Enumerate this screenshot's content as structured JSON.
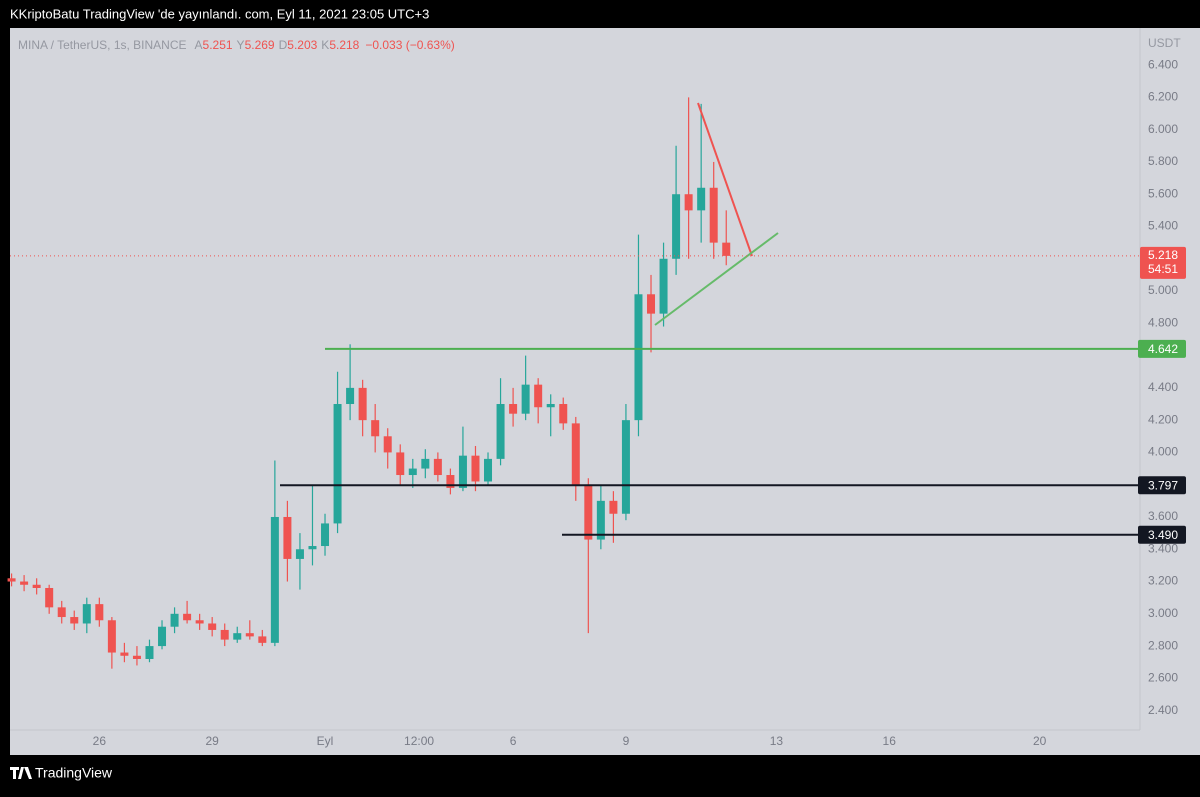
{
  "header": {
    "title": "KKriptoBatu TradingView 'de yayınlandı. com, Eyl 11, 2021 23:05 UTC+3"
  },
  "footer": {
    "brand": "TradingView"
  },
  "chart_data": {
    "type": "candlestick",
    "legend": {
      "symbol": "MINA / TetherUS, 1s, BINANCE",
      "ohlc": [
        {
          "label": "A",
          "value": 5.251
        },
        {
          "label": "Y",
          "value": 5.269
        },
        {
          "label": "D",
          "value": 5.203
        },
        {
          "label": "K",
          "value": 5.218
        }
      ],
      "change": "−0.033 (−0.63%)"
    },
    "currency": "USDT",
    "up_color": "#26a69a",
    "down_color": "#ef5350",
    "x": [
      "2021-08-23T16:00",
      "2021-08-24T00:00",
      "2021-08-24T08:00",
      "2021-08-24T16:00",
      "2021-08-25T00:00",
      "2021-08-25T08:00",
      "2021-08-25T16:00",
      "2021-08-26T00:00",
      "2021-08-26T08:00",
      "2021-08-26T16:00",
      "2021-08-27T00:00",
      "2021-08-27T08:00",
      "2021-08-27T16:00",
      "2021-08-28T00:00",
      "2021-08-28T08:00",
      "2021-08-28T16:00",
      "2021-08-29T00:00",
      "2021-08-29T08:00",
      "2021-08-29T16:00",
      "2021-08-30T00:00",
      "2021-08-30T08:00",
      "2021-08-30T16:00",
      "2021-08-31T00:00",
      "2021-08-31T08:00",
      "2021-08-31T16:00",
      "2021-09-01T00:00",
      "2021-09-01T08:00",
      "2021-09-01T16:00",
      "2021-09-02T00:00",
      "2021-09-02T08:00",
      "2021-09-02T16:00",
      "2021-09-03T00:00",
      "2021-09-03T08:00",
      "2021-09-03T16:00",
      "2021-09-04T00:00",
      "2021-09-04T08:00",
      "2021-09-04T16:00",
      "2021-09-05T00:00",
      "2021-09-05T08:00",
      "2021-09-05T16:00",
      "2021-09-06T00:00",
      "2021-09-06T08:00",
      "2021-09-06T16:00",
      "2021-09-07T00:00",
      "2021-09-07T08:00",
      "2021-09-07T16:00",
      "2021-09-08T00:00",
      "2021-09-08T08:00",
      "2021-09-08T16:00",
      "2021-09-09T00:00",
      "2021-09-09T08:00",
      "2021-09-09T16:00",
      "2021-09-10T00:00",
      "2021-09-10T08:00",
      "2021-09-10T16:00",
      "2021-09-11T00:00",
      "2021-09-11T08:00",
      "2021-09-11T16:00"
    ],
    "open": [
      3.22,
      3.2,
      3.18,
      3.16,
      3.04,
      2.98,
      2.94,
      3.06,
      2.96,
      2.76,
      2.74,
      2.72,
      2.8,
      2.92,
      3.0,
      2.96,
      2.94,
      2.9,
      2.84,
      2.88,
      2.86,
      2.82,
      3.6,
      3.34,
      3.4,
      3.42,
      3.56,
      4.3,
      4.4,
      4.2,
      4.1,
      4.0,
      3.86,
      3.9,
      3.96,
      3.86,
      3.78,
      3.98,
      3.82,
      3.96,
      4.3,
      4.24,
      4.42,
      4.28,
      4.3,
      4.18,
      3.8,
      3.46,
      3.7,
      3.62,
      4.2,
      4.98,
      4.86,
      5.2,
      5.6,
      5.5,
      5.64,
      5.3
    ],
    "high": [
      3.25,
      3.24,
      3.22,
      3.18,
      3.08,
      3.02,
      3.1,
      3.1,
      2.98,
      2.82,
      2.8,
      2.84,
      2.96,
      3.04,
      3.08,
      3.0,
      2.98,
      2.94,
      2.92,
      2.96,
      2.9,
      3.95,
      3.7,
      3.5,
      3.8,
      3.62,
      4.5,
      4.67,
      4.45,
      4.3,
      4.15,
      4.05,
      3.96,
      4.02,
      4.0,
      3.9,
      4.16,
      4.04,
      4.0,
      4.46,
      4.4,
      4.6,
      4.46,
      4.36,
      4.34,
      4.22,
      3.84,
      3.8,
      3.76,
      4.3,
      5.35,
      5.1,
      5.3,
      5.9,
      6.2,
      6.16,
      5.8,
      5.5
    ],
    "low": [
      3.17,
      3.14,
      3.12,
      3.0,
      2.94,
      2.9,
      2.88,
      2.92,
      2.66,
      2.7,
      2.68,
      2.7,
      2.78,
      2.88,
      2.94,
      2.9,
      2.86,
      2.8,
      2.82,
      2.84,
      2.8,
      2.8,
      3.2,
      3.15,
      3.3,
      3.36,
      3.5,
      4.2,
      4.1,
      4.0,
      3.9,
      3.8,
      3.78,
      3.84,
      3.82,
      3.74,
      3.76,
      3.76,
      3.8,
      3.92,
      4.16,
      4.2,
      4.18,
      4.1,
      4.14,
      3.7,
      2.88,
      3.4,
      3.44,
      3.58,
      4.1,
      4.62,
      4.78,
      5.1,
      5.2,
      5.3,
      5.2,
      5.16
    ],
    "close": [
      3.2,
      3.18,
      3.16,
      3.04,
      2.98,
      2.94,
      3.06,
      2.96,
      2.76,
      2.74,
      2.72,
      2.8,
      2.92,
      3.0,
      2.96,
      2.94,
      2.9,
      2.84,
      2.88,
      2.86,
      2.82,
      3.6,
      3.34,
      3.4,
      3.42,
      3.56,
      4.3,
      4.4,
      4.2,
      4.1,
      4.0,
      3.86,
      3.9,
      3.96,
      3.86,
      3.78,
      3.98,
      3.82,
      3.96,
      4.3,
      4.24,
      4.42,
      4.28,
      4.3,
      4.18,
      3.8,
      3.46,
      3.7,
      3.62,
      4.2,
      4.98,
      4.86,
      5.2,
      5.6,
      5.5,
      5.64,
      5.3,
      5.218
    ],
    "last_price": 5.218,
    "countdown": "54:51",
    "levels": [
      {
        "value": 4.642,
        "color": "#4caf50"
      },
      {
        "value": 3.797,
        "color": "#131722"
      },
      {
        "value": {
          "value": 3.49,
          "label": "3.490"
        },
        "color": "#131722"
      }
    ],
    "xlim": [
      "2021-08-23T15:00",
      "2021-09-22T16:00"
    ],
    "xticks": [
      {
        "value": "2021-08-26T00:00",
        "label": "26"
      },
      {
        "value": "2021-08-29T00:00",
        "label": "29"
      },
      {
        "value": "2021-09-01T00:00",
        "label": "Eyl"
      },
      {
        "value": "2021-09-03T12:00",
        "label": "12:00"
      },
      {
        "value": "2021-09-06T00:00",
        "label": "6"
      },
      {
        "value": "2021-09-09T00:00",
        "label": "9"
      },
      {
        "value": "2021-09-13T00:00",
        "label": "13"
      },
      {
        "value": "2021-09-16T00:00",
        "label": "16"
      },
      {
        "value": "2021-09-20T00:00",
        "label": "20"
      }
    ],
    "ylim": [
      2.28,
      6.63
    ],
    "yticks": [
      {
        "value": 2.4,
        "label": "2.400"
      },
      {
        "value": 2.6,
        "label": "2.600"
      },
      {
        "value": 2.8,
        "label": "2.800"
      },
      {
        "value": 3,
        "label": "3.000"
      },
      {
        "value": 3.2,
        "label": "3.200"
      },
      {
        "value": 3.4,
        "label": "3.400"
      },
      {
        "value": 3.6,
        "label": "3.600"
      },
      {
        "value": 4,
        "label": "4.000"
      },
      {
        "value": 4.2,
        "label": "4.200"
      },
      {
        "value": 4.4,
        "label": "4.400"
      },
      {
        "value": 4.8,
        "label": "4.800"
      },
      {
        "value": 5,
        "label": "5.000"
      },
      {
        "value": 5.2,
        "label": "5.200"
      },
      {
        "value": 5.4,
        "label": "5.400"
      },
      {
        "value": 5.6,
        "label": "5.600"
      },
      {
        "value": 5.8,
        "label": "5.800"
      },
      {
        "value": 6,
        "label": "6.000"
      },
      {
        "value": 6.2,
        "label": "6.200"
      },
      {
        "value": 6.4,
        "label": "6.400"
      }
    ]
  }
}
